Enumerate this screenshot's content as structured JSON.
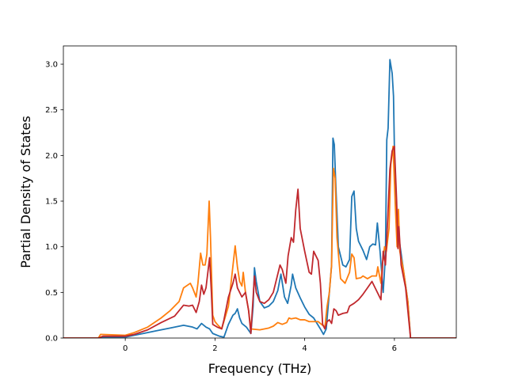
{
  "chart_data": {
    "type": "line",
    "title": "",
    "xlabel": "Frequency (THz)",
    "ylabel": "Partial Density of States",
    "xlim": [
      -1.38,
      7.38
    ],
    "ylim": [
      0.0,
      3.2
    ],
    "xticks": [
      0,
      2,
      4,
      6
    ],
    "xtick_labels": [
      "0",
      "2",
      "4",
      "6"
    ],
    "yticks": [
      0.0,
      0.5,
      1.0,
      1.5,
      2.0,
      2.5,
      3.0
    ],
    "ytick_labels": [
      "0.0",
      "0.5",
      "1.0",
      "1.5",
      "2.0",
      "2.5",
      "3.0"
    ],
    "grid": false,
    "legend": "none",
    "series": [
      {
        "color": "#1f77b4",
        "points": [
          [
            -1.38,
            0.0
          ],
          [
            -0.6,
            0.0
          ],
          [
            -0.5,
            0.01
          ],
          [
            0.0,
            0.01
          ],
          [
            0.2,
            0.03
          ],
          [
            0.4,
            0.05
          ],
          [
            0.7,
            0.08
          ],
          [
            1.0,
            0.11
          ],
          [
            1.3,
            0.14
          ],
          [
            1.5,
            0.12
          ],
          [
            1.6,
            0.1
          ],
          [
            1.7,
            0.16
          ],
          [
            1.8,
            0.12
          ],
          [
            1.88,
            0.1
          ],
          [
            1.95,
            0.05
          ],
          [
            2.1,
            0.02
          ],
          [
            2.2,
            0.01
          ],
          [
            2.3,
            0.15
          ],
          [
            2.4,
            0.25
          ],
          [
            2.45,
            0.27
          ],
          [
            2.5,
            0.32
          ],
          [
            2.55,
            0.22
          ],
          [
            2.6,
            0.16
          ],
          [
            2.7,
            0.12
          ],
          [
            2.8,
            0.05
          ],
          [
            2.85,
            0.35
          ],
          [
            2.88,
            0.77
          ],
          [
            2.92,
            0.62
          ],
          [
            3.0,
            0.4
          ],
          [
            3.1,
            0.33
          ],
          [
            3.2,
            0.35
          ],
          [
            3.3,
            0.4
          ],
          [
            3.4,
            0.52
          ],
          [
            3.47,
            0.7
          ],
          [
            3.55,
            0.45
          ],
          [
            3.62,
            0.38
          ],
          [
            3.7,
            0.58
          ],
          [
            3.73,
            0.7
          ],
          [
            3.8,
            0.55
          ],
          [
            3.9,
            0.44
          ],
          [
            4.0,
            0.34
          ],
          [
            4.1,
            0.26
          ],
          [
            4.2,
            0.22
          ],
          [
            4.3,
            0.14
          ],
          [
            4.35,
            0.1
          ],
          [
            4.42,
            0.04
          ],
          [
            4.48,
            0.1
          ],
          [
            4.55,
            0.5
          ],
          [
            4.6,
            0.8
          ],
          [
            4.63,
            2.19
          ],
          [
            4.66,
            2.12
          ],
          [
            4.7,
            1.6
          ],
          [
            4.75,
            1.0
          ],
          [
            4.85,
            0.8
          ],
          [
            4.92,
            0.78
          ],
          [
            5.0,
            0.86
          ],
          [
            5.05,
            1.55
          ],
          [
            5.1,
            1.61
          ],
          [
            5.15,
            1.2
          ],
          [
            5.2,
            1.06
          ],
          [
            5.3,
            0.96
          ],
          [
            5.38,
            0.86
          ],
          [
            5.45,
            1.0
          ],
          [
            5.52,
            1.03
          ],
          [
            5.58,
            1.02
          ],
          [
            5.62,
            1.26
          ],
          [
            5.68,
            0.95
          ],
          [
            5.75,
            0.5
          ],
          [
            5.8,
            0.9
          ],
          [
            5.83,
            2.17
          ],
          [
            5.86,
            2.3
          ],
          [
            5.9,
            3.05
          ],
          [
            5.95,
            2.9
          ],
          [
            5.98,
            2.65
          ],
          [
            6.02,
            1.5
          ],
          [
            6.1,
            1.1
          ],
          [
            6.2,
            0.75
          ],
          [
            6.3,
            0.4
          ],
          [
            6.36,
            0.0
          ],
          [
            7.38,
            0.0
          ]
        ]
      },
      {
        "color": "#ff7f0e",
        "points": [
          [
            -1.38,
            0.0
          ],
          [
            -0.6,
            0.0
          ],
          [
            -0.55,
            0.04
          ],
          [
            0.0,
            0.03
          ],
          [
            0.2,
            0.06
          ],
          [
            0.5,
            0.12
          ],
          [
            0.8,
            0.22
          ],
          [
            1.0,
            0.3
          ],
          [
            1.2,
            0.4
          ],
          [
            1.3,
            0.55
          ],
          [
            1.45,
            0.6
          ],
          [
            1.5,
            0.55
          ],
          [
            1.58,
            0.45
          ],
          [
            1.62,
            0.6
          ],
          [
            1.68,
            0.93
          ],
          [
            1.73,
            0.8
          ],
          [
            1.78,
            0.8
          ],
          [
            1.82,
            0.92
          ],
          [
            1.87,
            1.5
          ],
          [
            1.9,
            1.1
          ],
          [
            1.95,
            0.25
          ],
          [
            2.0,
            0.18
          ],
          [
            2.05,
            0.15
          ],
          [
            2.15,
            0.1
          ],
          [
            2.3,
            0.35
          ],
          [
            2.38,
            0.7
          ],
          [
            2.45,
            1.01
          ],
          [
            2.5,
            0.78
          ],
          [
            2.55,
            0.62
          ],
          [
            2.6,
            0.57
          ],
          [
            2.63,
            0.72
          ],
          [
            2.68,
            0.5
          ],
          [
            2.75,
            0.3
          ],
          [
            2.8,
            0.1
          ],
          [
            3.0,
            0.09
          ],
          [
            3.2,
            0.11
          ],
          [
            3.3,
            0.13
          ],
          [
            3.4,
            0.17
          ],
          [
            3.5,
            0.15
          ],
          [
            3.6,
            0.17
          ],
          [
            3.65,
            0.22
          ],
          [
            3.7,
            0.21
          ],
          [
            3.8,
            0.22
          ],
          [
            3.9,
            0.2
          ],
          [
            4.0,
            0.2
          ],
          [
            4.1,
            0.18
          ],
          [
            4.3,
            0.18
          ],
          [
            4.45,
            0.12
          ],
          [
            4.5,
            0.35
          ],
          [
            4.55,
            0.5
          ],
          [
            4.6,
            0.8
          ],
          [
            4.64,
            1.86
          ],
          [
            4.68,
            1.75
          ],
          [
            4.72,
            1.1
          ],
          [
            4.8,
            0.65
          ],
          [
            4.9,
            0.6
          ],
          [
            5.0,
            0.72
          ],
          [
            5.05,
            0.92
          ],
          [
            5.1,
            0.88
          ],
          [
            5.15,
            0.65
          ],
          [
            5.25,
            0.66
          ],
          [
            5.3,
            0.68
          ],
          [
            5.4,
            0.65
          ],
          [
            5.5,
            0.68
          ],
          [
            5.6,
            0.68
          ],
          [
            5.63,
            0.78
          ],
          [
            5.7,
            0.6
          ],
          [
            5.73,
            0.8
          ],
          [
            5.78,
            1.0
          ],
          [
            5.82,
            0.95
          ],
          [
            5.88,
            1.2
          ],
          [
            5.92,
            1.9
          ],
          [
            5.97,
            2.1
          ],
          [
            6.02,
            1.45
          ],
          [
            6.06,
            1.0
          ],
          [
            6.09,
            1.41
          ],
          [
            6.12,
            0.95
          ],
          [
            6.2,
            0.75
          ],
          [
            6.3,
            0.4
          ],
          [
            6.36,
            0.0
          ],
          [
            7.38,
            0.0
          ]
        ]
      },
      {
        "color": "#c0282d",
        "points": [
          [
            -1.38,
            0.0
          ],
          [
            -0.6,
            0.0
          ],
          [
            -0.5,
            0.02
          ],
          [
            0.0,
            0.02
          ],
          [
            0.2,
            0.04
          ],
          [
            0.5,
            0.09
          ],
          [
            0.8,
            0.17
          ],
          [
            1.1,
            0.24
          ],
          [
            1.3,
            0.36
          ],
          [
            1.42,
            0.35
          ],
          [
            1.5,
            0.36
          ],
          [
            1.58,
            0.28
          ],
          [
            1.65,
            0.4
          ],
          [
            1.7,
            0.58
          ],
          [
            1.75,
            0.48
          ],
          [
            1.8,
            0.55
          ],
          [
            1.88,
            0.88
          ],
          [
            1.92,
            0.5
          ],
          [
            1.95,
            0.15
          ],
          [
            2.05,
            0.12
          ],
          [
            2.15,
            0.1
          ],
          [
            2.2,
            0.2
          ],
          [
            2.3,
            0.45
          ],
          [
            2.4,
            0.6
          ],
          [
            2.45,
            0.7
          ],
          [
            2.5,
            0.55
          ],
          [
            2.6,
            0.45
          ],
          [
            2.68,
            0.5
          ],
          [
            2.75,
            0.3
          ],
          [
            2.8,
            0.05
          ],
          [
            2.88,
            0.68
          ],
          [
            2.92,
            0.5
          ],
          [
            3.0,
            0.4
          ],
          [
            3.1,
            0.38
          ],
          [
            3.2,
            0.42
          ],
          [
            3.3,
            0.5
          ],
          [
            3.45,
            0.8
          ],
          [
            3.5,
            0.75
          ],
          [
            3.58,
            0.6
          ],
          [
            3.63,
            0.9
          ],
          [
            3.7,
            1.1
          ],
          [
            3.75,
            1.05
          ],
          [
            3.8,
            1.4
          ],
          [
            3.85,
            1.63
          ],
          [
            3.9,
            1.2
          ],
          [
            4.0,
            0.95
          ],
          [
            4.1,
            0.72
          ],
          [
            4.15,
            0.7
          ],
          [
            4.2,
            0.95
          ],
          [
            4.3,
            0.85
          ],
          [
            4.35,
            0.6
          ],
          [
            4.4,
            0.15
          ],
          [
            4.45,
            0.1
          ],
          [
            4.5,
            0.18
          ],
          [
            4.55,
            0.2
          ],
          [
            4.6,
            0.16
          ],
          [
            4.65,
            0.32
          ],
          [
            4.7,
            0.3
          ],
          [
            4.75,
            0.25
          ],
          [
            4.85,
            0.27
          ],
          [
            4.95,
            0.28
          ],
          [
            5.0,
            0.35
          ],
          [
            5.1,
            0.38
          ],
          [
            5.2,
            0.42
          ],
          [
            5.3,
            0.48
          ],
          [
            5.4,
            0.55
          ],
          [
            5.5,
            0.62
          ],
          [
            5.6,
            0.52
          ],
          [
            5.7,
            0.42
          ],
          [
            5.75,
            0.95
          ],
          [
            5.8,
            0.8
          ],
          [
            5.85,
            1.3
          ],
          [
            5.9,
            1.85
          ],
          [
            5.95,
            2.05
          ],
          [
            6.0,
            2.1
          ],
          [
            6.05,
            1.5
          ],
          [
            6.08,
            0.98
          ],
          [
            6.1,
            1.22
          ],
          [
            6.15,
            0.8
          ],
          [
            6.25,
            0.55
          ],
          [
            6.3,
            0.3
          ],
          [
            6.36,
            0.0
          ],
          [
            7.38,
            0.0
          ]
        ]
      }
    ]
  }
}
